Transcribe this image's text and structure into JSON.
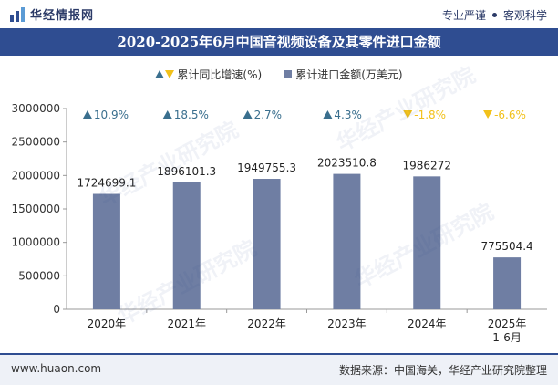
{
  "header": {
    "brand_name": "华经情报网",
    "slogan_left": "专业严谨",
    "slogan_right": "客观科学"
  },
  "footer": {
    "website": "www.huaon.com",
    "source": "数据来源：中国海关，华经产业研究院整理"
  },
  "watermark": {
    "text": "华经产业研究院",
    "site": "www.huaon.com"
  },
  "colors": {
    "bar": "#6f7ea3",
    "title_bg": "#2f4d91",
    "up": "#3a6f8e",
    "down": "#f2c11a"
  },
  "chart_data": {
    "type": "bar",
    "title": "2020-2025年6月中国音视频设备及其零件进口金额",
    "categories": [
      "2020年",
      "2021年",
      "2022年",
      "2023年",
      "2024年",
      "2025年\n1-6月"
    ],
    "series": [
      {
        "name": "累计进口金额(万美元)",
        "values": [
          1724699.1,
          1896101.3,
          1949755.3,
          2023510.8,
          1986272,
          775504.4
        ],
        "labels": [
          "1724699.1",
          "1896101.3",
          "1949755.3",
          "2023510.8",
          "1986272",
          "775504.4"
        ]
      },
      {
        "name": "累计同比增速(%)",
        "values": [
          10.9,
          18.5,
          2.7,
          4.3,
          -1.8,
          -6.6
        ],
        "labels": [
          "10.9%",
          "18.5%",
          "2.7%",
          "4.3%",
          "-1.8%",
          "-6.6%"
        ]
      }
    ],
    "ylim": [
      0,
      3000000
    ],
    "yticks": [
      0,
      500000,
      1000000,
      1500000,
      2000000,
      2500000,
      3000000
    ],
    "ytick_labels": [
      "0",
      "500000",
      "1000000",
      "1500000",
      "2000000",
      "2500000",
      "3000000"
    ],
    "grid": false,
    "legend": "top-center"
  }
}
